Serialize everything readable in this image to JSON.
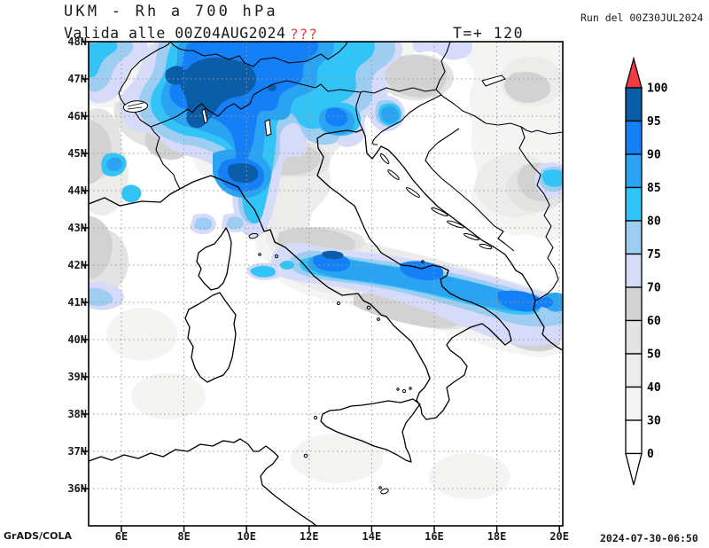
{
  "header": {
    "title": "UKM - Rh a 700 hPa",
    "valid_label": "Valida alle 00Z04AUG2024",
    "warning": "???",
    "warning_color": "#e84040",
    "lead_time": "T=+ 120",
    "run_label": "Run del 00Z30JUL2024"
  },
  "footer": {
    "credit": "GrADS/COLA",
    "timestamp": "2024-07-30-06:50"
  },
  "axes": {
    "lat": [
      "48N",
      "47N",
      "46N",
      "45N",
      "44N",
      "43N",
      "42N",
      "41N",
      "40N",
      "39N",
      "38N",
      "37N",
      "36N"
    ],
    "lon": [
      "6E",
      "8E",
      "10E",
      "12E",
      "14E",
      "16E",
      "18E",
      "20E"
    ]
  },
  "colorbar": {
    "labels": [
      "100",
      "95",
      "90",
      "85",
      "80",
      "75",
      "70",
      "60",
      "50",
      "40",
      "30",
      "0"
    ],
    "cells": [
      {
        "range": "95-100",
        "color": "#0c5da8"
      },
      {
        "range": "90-95",
        "color": "#1480f7"
      },
      {
        "range": "85-90",
        "color": "#2aa4f2"
      },
      {
        "range": "80-85",
        "color": "#33c4f7"
      },
      {
        "range": "75-80",
        "color": "#9ecdf2"
      },
      {
        "range": "70-75",
        "color": "#d6dbfa"
      },
      {
        "range": "60-70",
        "color": "#d2d2d2"
      },
      {
        "range": "50-60",
        "color": "#e3e3e1"
      },
      {
        "range": "40-50",
        "color": "#ececea"
      },
      {
        "range": "30-40",
        "color": "#f4f4f2"
      },
      {
        "range": "0-30",
        "color": "#ffffff"
      },
      {
        "range": "",
        "color": ""
      }
    ],
    "over_color": "#f23b45",
    "under_color": "#ffffff"
  },
  "chart_data": {
    "type": "filled_contour_map",
    "title": "UKM - Rh a 700 hPa",
    "variable": "Rh",
    "pressure_level": "700 hPa",
    "unit": "%",
    "model": "UKM",
    "run": "00Z30JUL2024",
    "valid_time": "00Z04AUG2024",
    "forecast_lead_hours": 120,
    "lon_axis": {
      "ticks": [
        "6E",
        "8E",
        "10E",
        "12E",
        "14E",
        "16E",
        "18E",
        "20E"
      ],
      "range": [
        "5E",
        "20E"
      ]
    },
    "lat_axis": {
      "ticks": [
        "48N",
        "47N",
        "46N",
        "45N",
        "44N",
        "43N",
        "42N",
        "41N",
        "40N",
        "39N",
        "38N",
        "37N",
        "36N"
      ],
      "range": [
        "35N",
        "48N"
      ]
    },
    "contour_levels": [
      0,
      30,
      40,
      50,
      60,
      70,
      75,
      80,
      85,
      90,
      95,
      100
    ],
    "palette": [
      "#ffffff",
      "#f4f4f2",
      "#ececea",
      "#e3e3e1",
      "#d2d2d2",
      "#d6dbfa",
      "#9ecdf2",
      "#33c4f7",
      "#2aa4f2",
      "#1480f7",
      "#0c5da8",
      "#f23b45"
    ],
    "grid": "dotted, 1 deg latitude / 2 deg longitude",
    "high_rh_regions": [
      "Alps / Switzerland core 95-100% centered near 8-10E 46.5-47.5N",
      "Bright 85-95% area over NW Italy extending along top edge to 13-14E",
      "Tongue 80-95% from Liguria (9E 44.5N) south to Tuscany coast (10E 43N) with 95-100% core near 10E 44.2N",
      "Diagonal 75-95% band from central Italy (12E 42.3N) east-southeast to Albania (20E 41N)",
      "Small 85-90% spots near 13.7E 46.3N, 20E 44.3N, left edge 5E 41.3N",
      "Gray 60-70% patches flanking blue areas; RH below 30% (white) over Tyrrhenian and far south"
    ]
  }
}
